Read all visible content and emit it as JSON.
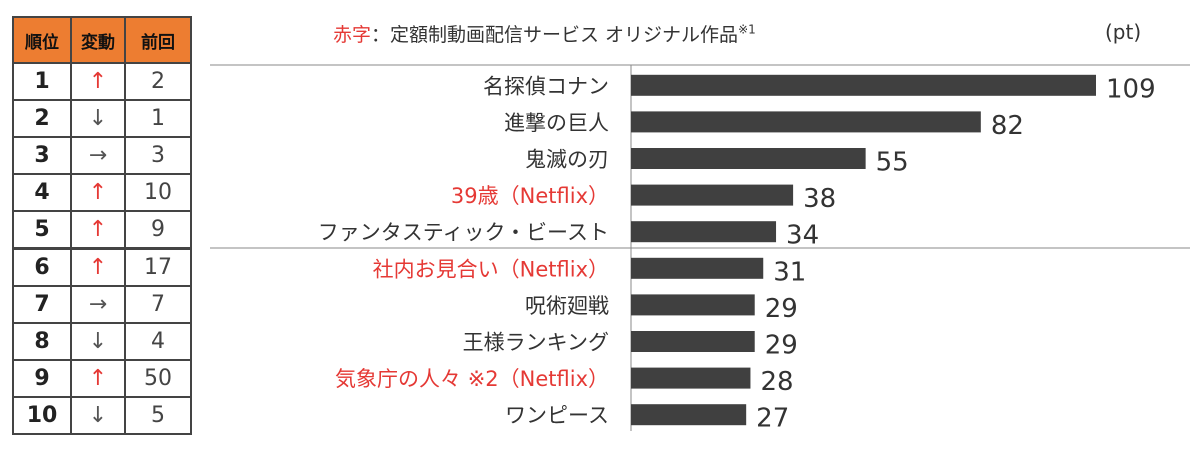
{
  "table": {
    "headers": {
      "rank": "順位",
      "change": "変動",
      "previous": "前回"
    },
    "rows": [
      {
        "rank": "1",
        "change": "↑",
        "dir": "up",
        "previous": "2"
      },
      {
        "rank": "2",
        "change": "↓",
        "dir": "down",
        "previous": "1"
      },
      {
        "rank": "3",
        "change": "→",
        "dir": "same",
        "previous": "3"
      },
      {
        "rank": "4",
        "change": "↑",
        "dir": "up",
        "previous": "10"
      },
      {
        "rank": "5",
        "change": "↑",
        "dir": "up",
        "previous": "9"
      },
      {
        "rank": "6",
        "change": "↑",
        "dir": "up",
        "previous": "17"
      },
      {
        "rank": "7",
        "change": "→",
        "dir": "same",
        "previous": "7"
      },
      {
        "rank": "8",
        "change": "↓",
        "dir": "down",
        "previous": "4"
      },
      {
        "rank": "9",
        "change": "↑",
        "dir": "up",
        "previous": "50"
      },
      {
        "rank": "10",
        "change": "↓",
        "dir": "down",
        "previous": "5"
      }
    ]
  },
  "legend": {
    "red_word": "赤字",
    "text": "：定額制動画配信サービス オリジナル作品",
    "footnote": "※1"
  },
  "unit": "(pt)",
  "colors": {
    "header": "#ed7d31",
    "bar": "#404040",
    "highlight": "#e53935",
    "up_arrow": "#e53935"
  },
  "chart_data": {
    "type": "bar",
    "orientation": "horizontal",
    "categories": [
      "名探偵コナン",
      "進撃の巨人",
      "鬼滅の刃",
      "39歳（Netflix）",
      "ファンタスティック・ビースト",
      "社内お見合い（Netflix）",
      "呪術廻戦",
      "王様ランキング",
      "気象庁の人々 ※2（Netflix）",
      "ワンピース"
    ],
    "values": [
      109,
      82,
      55,
      38,
      34,
      31,
      29,
      29,
      28,
      27
    ],
    "highlighted": [
      false,
      false,
      false,
      true,
      false,
      true,
      false,
      false,
      true,
      false
    ],
    "unit": "pt",
    "xlim": [
      0,
      109
    ]
  }
}
